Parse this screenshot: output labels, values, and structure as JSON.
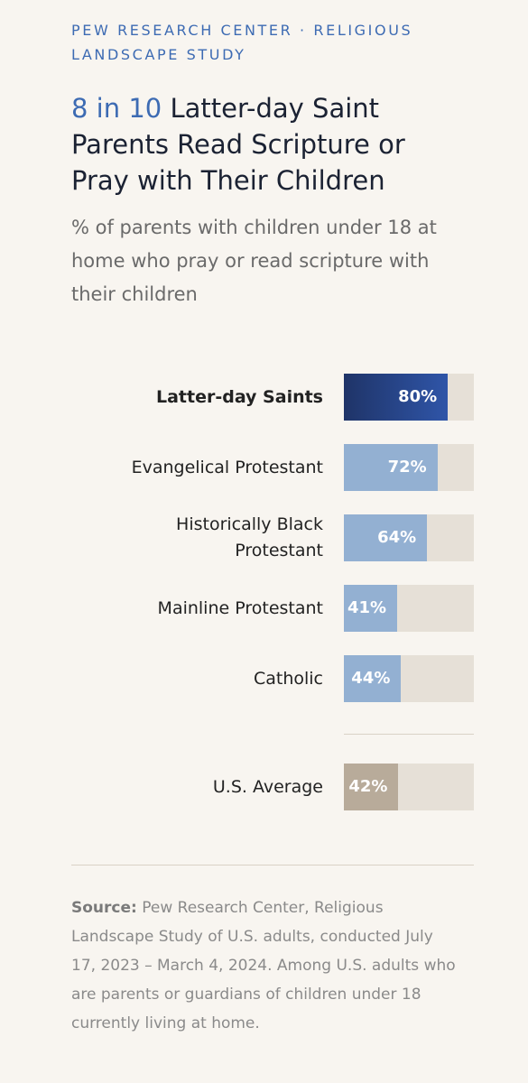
{
  "header": "PEW RESEARCH CENTER · RELIGIOUS LANDSCAPE STUDY",
  "chart_data": {
    "type": "bar",
    "title_highlight": "8 in 10",
    "title": "Latter-day Saint Parents Read Scripture or Pray with Their Children",
    "subtitle": "% of parents with children under 18 at home who pray or read scripture with their children",
    "categories": [
      "Latter-day Saints",
      "Evangelical Protestant",
      "Historically Black Protestant",
      "Mainline Protestant",
      "Catholic"
    ],
    "values": [
      80,
      72,
      64,
      41,
      44
    ],
    "value_labels": [
      "80%",
      "72%",
      "64%",
      "41%",
      "44%"
    ],
    "colors": [
      "#2f55a8",
      "#93b0d2",
      "#93b0d2",
      "#93b0d2",
      "#93b0d2"
    ],
    "average": {
      "category": "U.S. Average",
      "value": 42,
      "value_label": "42%",
      "color": "#b8ab9a"
    },
    "xlim": [
      0,
      100
    ]
  },
  "source": {
    "label": "Source:",
    "text": "Pew Research Center, Religious Landscape Study of U.S. adults, conducted July 17, 2023 – March 4, 2024. Among U.S. adults who are parents or guardians of children under 18 currently living at home."
  }
}
